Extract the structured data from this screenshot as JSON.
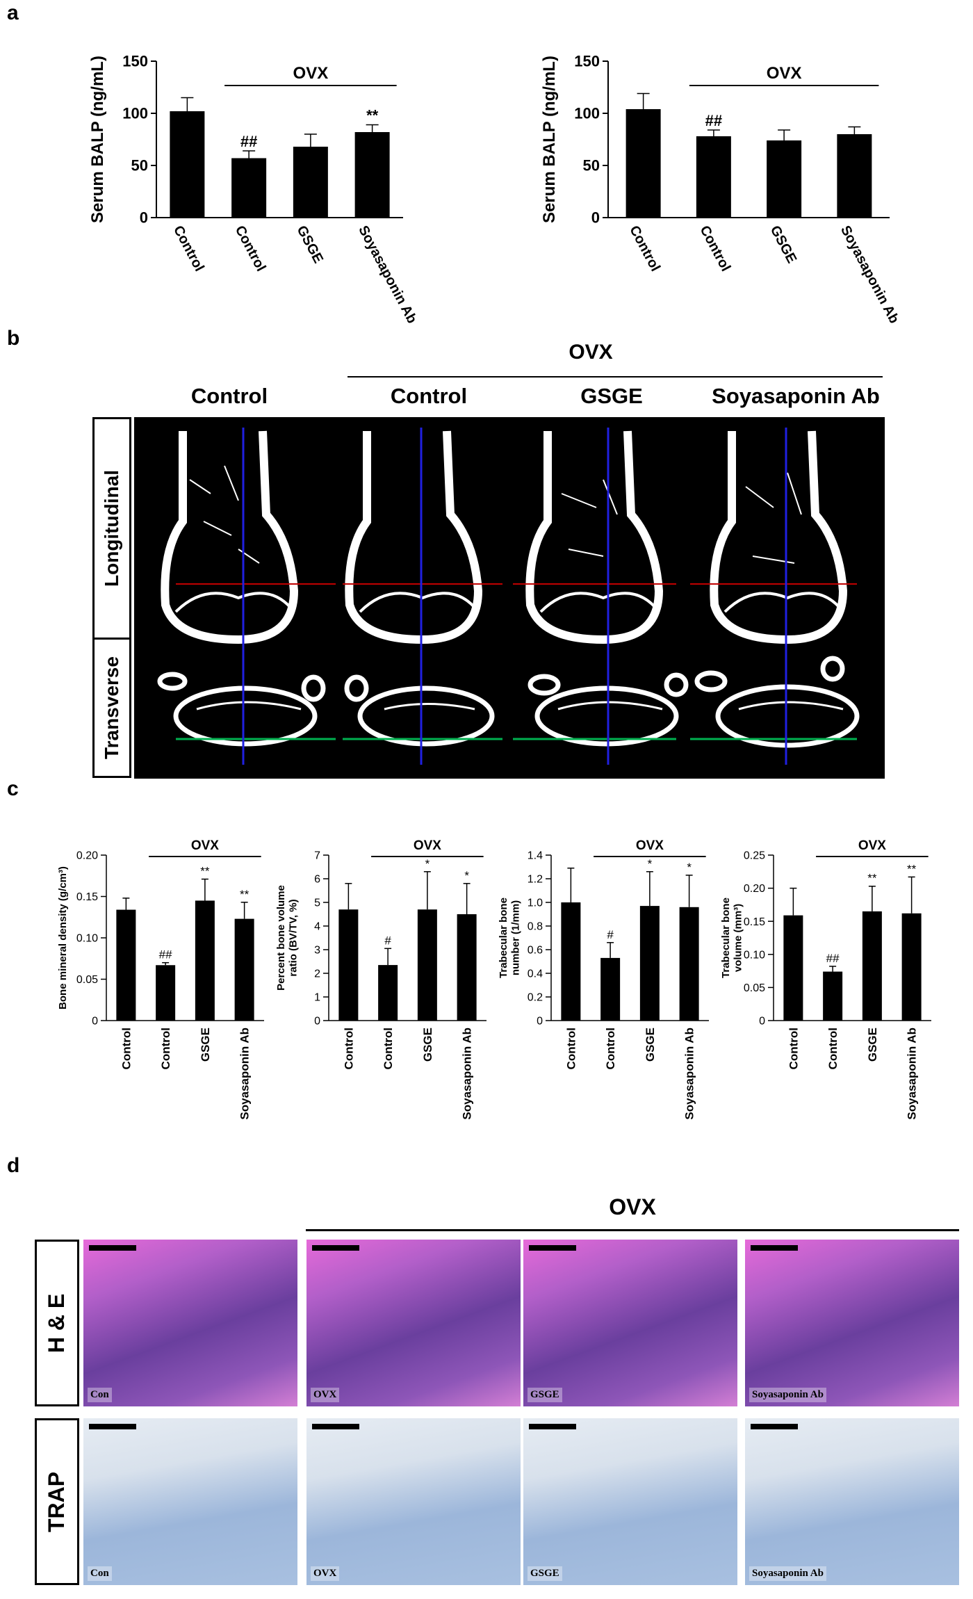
{
  "panels": {
    "a": "a",
    "b": "b",
    "c": "c",
    "d": "d"
  },
  "group_label": "OVX",
  "sig": {
    "double_hash": "##",
    "single_hash": "#",
    "double_star": "**",
    "single_star": "*"
  },
  "panel_a": {
    "ylabel": "Serum BALP (ng/mL)",
    "categories": [
      "Control",
      "Control",
      "GSGE",
      "Soyasaponin Ab"
    ]
  },
  "panel_b": {
    "headers": [
      "Control",
      "Control",
      "GSGE",
      "Soyasaponin Ab"
    ],
    "row_labels": [
      "Longitudinal",
      "Transverse"
    ]
  },
  "panel_c": {
    "categories": [
      "Control",
      "Control",
      "GSGE",
      "Soyasaponin Ab"
    ]
  },
  "panel_d": {
    "row_labels": [
      "H & E",
      "TRAP"
    ],
    "image_labels": [
      "Con",
      "OVX",
      "GSGE",
      "Soyasaponin Ab"
    ]
  },
  "colors": {
    "bar": "#000000",
    "he_bg": "#d87fc7",
    "trap_bg": "#c9d6e8"
  },
  "chart_data": [
    {
      "type": "bar",
      "id": "a1",
      "ylabel": "Serum BALP (ng/mL)",
      "categories": [
        "Control",
        "Control",
        "GSGE",
        "Soyasaponin Ab"
      ],
      "values": [
        102,
        57,
        68,
        82
      ],
      "errors": [
        13,
        7,
        12,
        7
      ],
      "annotations": [
        "",
        "##",
        "",
        "**"
      ],
      "group_label": "OVX",
      "ylim": [
        0,
        150
      ],
      "yticks": [
        0,
        50,
        100,
        150
      ],
      "tick_labels": [
        "0",
        "50",
        "100",
        "150"
      ]
    },
    {
      "type": "bar",
      "id": "a2",
      "ylabel": "Serum BALP (ng/mL)",
      "categories": [
        "Control",
        "Control",
        "GSGE",
        "Soyasaponin Ab"
      ],
      "values": [
        104,
        78,
        74,
        80
      ],
      "errors": [
        15,
        6,
        10,
        7
      ],
      "annotations": [
        "",
        "##",
        "",
        ""
      ],
      "group_label": "OVX",
      "ylim": [
        0,
        150
      ],
      "yticks": [
        0,
        50,
        100,
        150
      ],
      "tick_labels": [
        "0",
        "50",
        "100",
        "150"
      ]
    },
    {
      "type": "bar",
      "id": "c1",
      "ylabel": "Bone mineral density (g/cm³)",
      "categories": [
        "Control",
        "Control",
        "GSGE",
        "Soyasaponin Ab"
      ],
      "values": [
        0.134,
        0.067,
        0.145,
        0.123
      ],
      "errors": [
        0.014,
        0.003,
        0.026,
        0.02
      ],
      "annotations": [
        "",
        "##",
        "**",
        "**"
      ],
      "group_label": "OVX",
      "ylim": [
        0,
        0.2
      ],
      "yticks": [
        0,
        0.05,
        0.1,
        0.15,
        0.2
      ],
      "tick_labels": [
        "0",
        "0.05",
        "0.10",
        "0.15",
        "0.20"
      ]
    },
    {
      "type": "bar",
      "id": "c2",
      "ylabel": "Percent bone volume ratio (BV/TV, %)",
      "categories": [
        "Control",
        "Control",
        "GSGE",
        "Soyasaponin Ab"
      ],
      "values": [
        4.7,
        2.35,
        4.7,
        4.5
      ],
      "errors": [
        1.1,
        0.7,
        1.6,
        1.3
      ],
      "annotations": [
        "",
        "#",
        "*",
        "*"
      ],
      "group_label": "OVX",
      "ylim": [
        0,
        7
      ],
      "yticks": [
        0,
        1,
        2,
        3,
        4,
        5,
        6,
        7
      ],
      "tick_labels": [
        "0",
        "1",
        "2",
        "3",
        "4",
        "5",
        "6",
        "7"
      ]
    },
    {
      "type": "bar",
      "id": "c3",
      "ylabel": "Trabecular bone number (1/mm)",
      "categories": [
        "Control",
        "Control",
        "GSGE",
        "Soyasaponin Ab"
      ],
      "values": [
        1.0,
        0.53,
        0.97,
        0.96
      ],
      "errors": [
        0.29,
        0.13,
        0.29,
        0.27
      ],
      "annotations": [
        "",
        "#",
        "*",
        "*"
      ],
      "group_label": "OVX",
      "ylim": [
        0,
        1.4
      ],
      "yticks": [
        0,
        0.2,
        0.4,
        0.6,
        0.8,
        1.0,
        1.2,
        1.4
      ],
      "tick_labels": [
        "0",
        "0.2",
        "0.4",
        "0.6",
        "0.8",
        "1.0",
        "1.2",
        "1.4"
      ]
    },
    {
      "type": "bar",
      "id": "c4",
      "ylabel": "Trabecular bone volume (mm³)",
      "categories": [
        "Control",
        "Control",
        "GSGE",
        "Soyasaponin Ab"
      ],
      "values": [
        0.159,
        0.074,
        0.165,
        0.162
      ],
      "errors": [
        0.041,
        0.008,
        0.038,
        0.055
      ],
      "annotations": [
        "",
        "##",
        "**",
        "**"
      ],
      "group_label": "OVX",
      "ylim": [
        0,
        0.25
      ],
      "yticks": [
        0,
        0.05,
        0.1,
        0.15,
        0.2,
        0.25
      ],
      "tick_labels": [
        "0",
        "0.05",
        "0.10",
        "0.15",
        "0.20",
        "0.25"
      ]
    }
  ]
}
